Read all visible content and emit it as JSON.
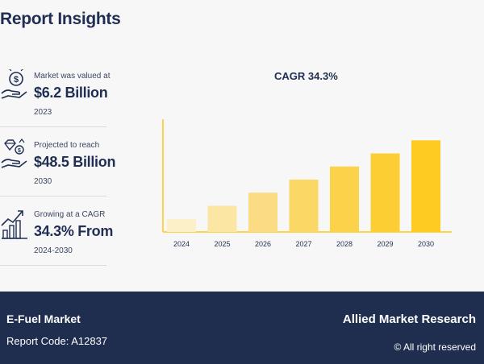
{
  "page": {
    "title": "Report Insights"
  },
  "insights": [
    {
      "label": "Market was valued at",
      "value": "$6.2 Billion",
      "sub": "2023",
      "icon": "money-hand-icon"
    },
    {
      "label": "Projected to reach",
      "value": "$48.5 Billion",
      "sub": "2030",
      "icon": "diamond-hand-icon"
    },
    {
      "label": "Growing at a CAGR",
      "value": "34.3% From",
      "sub": "2024-2030",
      "icon": "growth-chart-icon"
    }
  ],
  "chart_data": {
    "type": "bar",
    "title": "CAGR 34.3%",
    "categories": [
      "2024",
      "2025",
      "2026",
      "2027",
      "2028",
      "2029",
      "2030"
    ],
    "values": [
      1,
      2,
      3,
      4,
      5,
      6,
      7
    ],
    "ylim": [
      0,
      8
    ],
    "grid": false,
    "colors": [
      "#fbf0c8",
      "#fbe6a4",
      "#fbdc82",
      "#fbd766",
      "#fcd24a",
      "#fcce33",
      "#fdcb22"
    ]
  },
  "footer": {
    "market": "E-Fuel Market",
    "code": "Report Code: A12837",
    "brand": "Allied Market Research",
    "rights": "© All right reserved"
  },
  "colors": {
    "navy": "#1f2e4f",
    "axis": "#fcd34a",
    "bar_base": "#fdcb22"
  }
}
